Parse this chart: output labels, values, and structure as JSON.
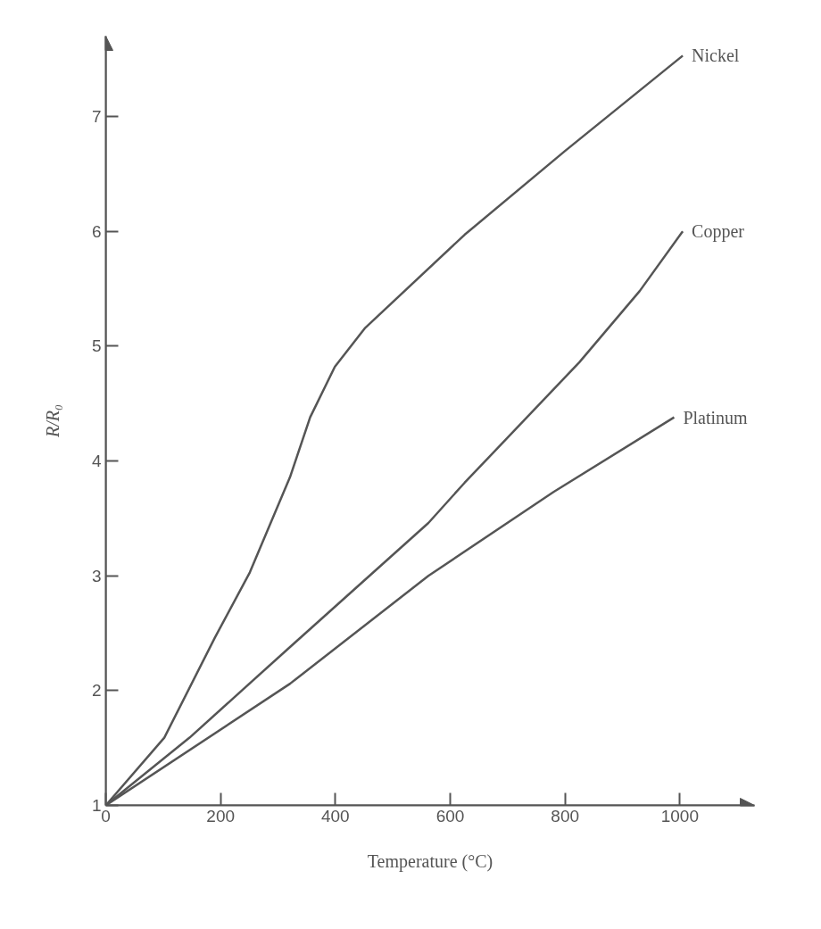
{
  "chart_data": {
    "type": "line",
    "xlabel": "Temperature (°C)",
    "ylabel": "R/R₀",
    "xlim": [
      0,
      1130
    ],
    "ylim": [
      1,
      7.7
    ],
    "xticks": [
      0,
      200,
      400,
      600,
      800,
      1000
    ],
    "yticks": [
      1,
      2,
      3,
      4,
      5,
      6,
      7
    ],
    "grid": false,
    "legend": false,
    "marker": "none",
    "line_style": "solid",
    "series": [
      {
        "name": "Nickel",
        "color": "#555555",
        "x": [
          0,
          102,
          190,
          251,
          321,
          356,
          399,
          452,
          625,
          800,
          1005
        ],
        "values": [
          1,
          1.59,
          2.46,
          3.03,
          3.86,
          4.38,
          4.82,
          5.16,
          5.97,
          6.7,
          7.53
        ]
      },
      {
        "name": "Copper",
        "color": "#555555",
        "x": [
          0,
          146,
          321,
          562,
          625,
          825,
          930,
          1005
        ],
        "values": [
          1,
          1.59,
          2.38,
          3.46,
          3.81,
          4.86,
          5.48,
          6.0
        ]
      },
      {
        "name": "Platinum",
        "color": "#555555",
        "x": [
          0,
          321,
          562,
          780,
          990
        ],
        "values": [
          1,
          2.06,
          3.0,
          3.73,
          4.38
        ]
      }
    ]
  }
}
